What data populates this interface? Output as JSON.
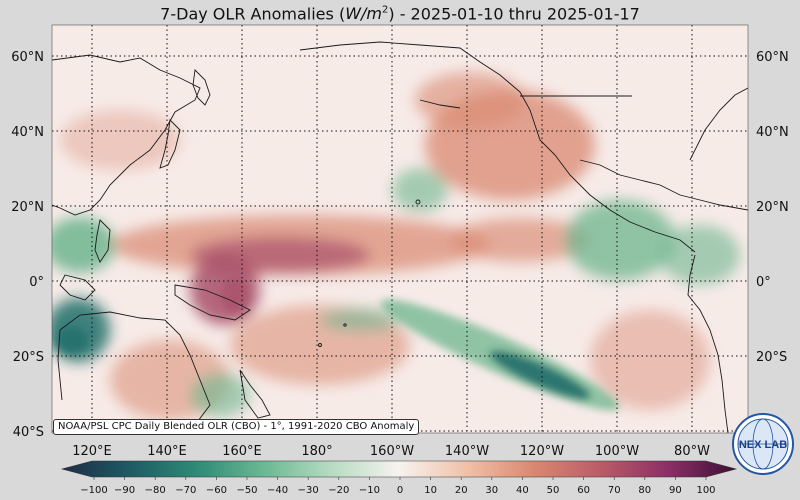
{
  "title": {
    "prefix": "7-Day OLR Anomalies (",
    "unit_base": "W/m",
    "unit_exp": "2",
    "suffix": ") - 2025-01-10 thru 2025-01-17"
  },
  "map": {
    "lat_labels": [
      "60°N",
      "40°N",
      "20°N",
      "0°",
      "20°S",
      "40°S"
    ],
    "lon_labels": [
      "120°E",
      "140°E",
      "160°E",
      "180°",
      "160°W",
      "140°W",
      "120°W",
      "100°W",
      "80°W"
    ],
    "colors": {
      "background": "#d9d9d9",
      "neutral": "#f7ebe8",
      "positive_strong": "#a8506a",
      "positive_mid": "#d98870",
      "negative_mid": "#6db58e",
      "negative_strong": "#1f6e6a",
      "coast": "#1a1a1a"
    }
  },
  "credit": "NOAA/PSL CPC Daily Blended OLR (CBO) - 1°, 1991-2020 CBO Anomaly",
  "colorbar": {
    "ticks": [
      "−100",
      "−90",
      "−80",
      "−70",
      "−60",
      "−50",
      "−40",
      "−30",
      "−20",
      "−10",
      "0",
      "10",
      "20",
      "30",
      "40",
      "50",
      "60",
      "70",
      "80",
      "90",
      "100"
    ],
    "stops": [
      "#1d2c47",
      "#1f5a63",
      "#2f8a77",
      "#6cb894",
      "#b6dcc2",
      "#f7f2ef",
      "#f0c1a8",
      "#d98870",
      "#b95c68",
      "#8a2f66",
      "#3d0e35"
    ]
  },
  "logo": {
    "text": "NEX LAB"
  }
}
